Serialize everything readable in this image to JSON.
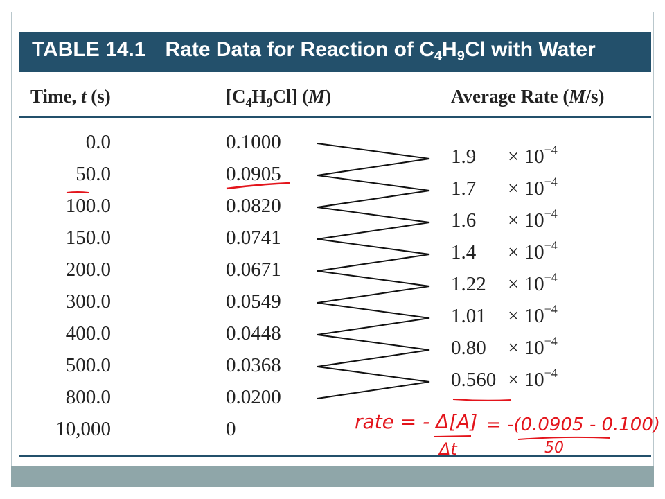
{
  "table": {
    "title_label": "TABLE 14.1",
    "title_text_before": "Rate Data for Reaction of C",
    "title_sub1": "4",
    "title_mid": "H",
    "title_sub2": "9",
    "title_after": "Cl with Water",
    "columns": {
      "time": {
        "prefix": "Time, ",
        "var": "t",
        "suffix": " (s)"
      },
      "conc": {
        "prefix": "[C",
        "sub1": "4",
        "mid": "H",
        "sub2": "9",
        "after": "Cl] (",
        "unit": "M",
        "close": ")"
      },
      "rate": {
        "prefix": "Average Rate (",
        "unit": "M",
        "suffix": "/s)"
      }
    },
    "times": [
      "0.0",
      "50.0",
      "100.0",
      "150.0",
      "200.0",
      "300.0",
      "400.0",
      "500.0",
      "800.0",
      "10,000"
    ],
    "concentrations": [
      "0.1000",
      "0.0905",
      "0.0820",
      "0.0741",
      "0.0671",
      "0.0549",
      "0.0448",
      "0.0368",
      "0.0200",
      "0"
    ],
    "rates": [
      "1.9",
      "1.7",
      "1.6",
      "1.4",
      "1.22",
      "1.01",
      "0.80",
      "0.560"
    ],
    "rate_multiplier": "× 10",
    "rate_exponent": "−4"
  },
  "annotations": {
    "lhs": "rate = - Δ[A]",
    "lhs_denominator": "Δt",
    "rhs_numerator": "= -(0.0905 - 0.100)",
    "rhs_denominator": "50"
  },
  "colors": {
    "title_bar": "#23506b",
    "bottom_bar": "#8fa6a9",
    "handwriting": "#e3141b"
  }
}
